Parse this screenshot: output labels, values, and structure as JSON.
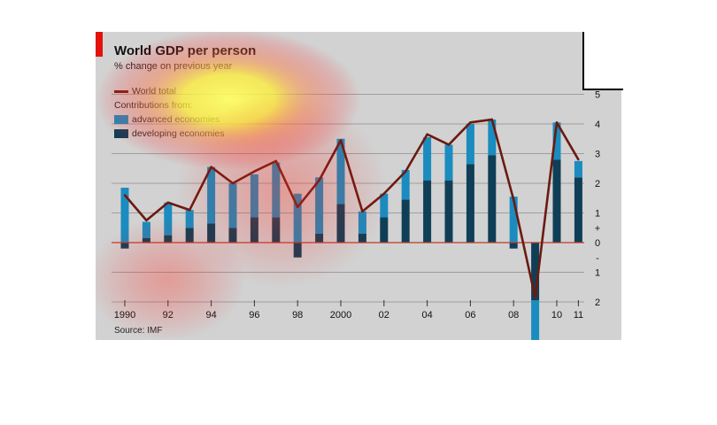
{
  "header": {
    "title": "World GDP per person",
    "subtitle": "% change on previous year"
  },
  "legend": {
    "line_label": "World total",
    "group_title": "Contributions from:",
    "advanced_label": "advanced economies",
    "developing_label": "developing economies"
  },
  "footer": {
    "source": "Source: IMF"
  },
  "colors": {
    "advanced": "#1a8cbf",
    "developing": "#0f3f57",
    "line": "#6b1a10",
    "zero_line": "#c0392b",
    "grid": "#9e9e9e",
    "panel": "#d2d2d2",
    "accent": "#e3120b"
  },
  "chart_data": {
    "type": "bar",
    "subtype": "stacked bar with line overlay",
    "title": "World GDP per person",
    "subtitle": "% change on previous year",
    "source": "Source: IMF",
    "x": [
      1990,
      1991,
      1992,
      1993,
      1994,
      1995,
      1996,
      1997,
      1998,
      1999,
      2000,
      2001,
      2002,
      2003,
      2004,
      2005,
      2006,
      2007,
      2008,
      2009,
      2010,
      2011
    ],
    "x_tick_labels": [
      "1990",
      "92",
      "94",
      "96",
      "98",
      "2000",
      "02",
      "04",
      "06",
      "08",
      "10",
      "11"
    ],
    "x_tick_years": [
      1990,
      1992,
      1994,
      1996,
      1998,
      2000,
      2002,
      2004,
      2006,
      2008,
      2010,
      2011
    ],
    "y_right_tick_labels": [
      "5",
      "4",
      "3",
      "2",
      "1",
      "+",
      "0",
      "-",
      "1",
      "2"
    ],
    "y_right_tick_values": [
      5,
      4,
      3,
      2,
      1,
      0.5,
      0,
      -0.5,
      -1,
      -2
    ],
    "ylim": [
      -2,
      5
    ],
    "grid": true,
    "axis_position": "right",
    "legend_position": "top-left",
    "series": [
      {
        "name": "developing economies",
        "kind": "bar",
        "values": [
          -0.2,
          0.15,
          0.25,
          0.5,
          0.65,
          0.5,
          0.85,
          0.85,
          -0.5,
          0.3,
          1.3,
          0.3,
          0.85,
          1.45,
          2.1,
          2.1,
          2.65,
          2.95,
          -0.2,
          -1.95,
          2.8,
          2.2
        ]
      },
      {
        "name": "advanced economies",
        "kind": "bar",
        "values": [
          1.85,
          0.55,
          1.1,
          0.6,
          1.9,
          1.5,
          1.45,
          1.85,
          1.65,
          1.9,
          2.2,
          0.75,
          0.8,
          1.0,
          1.45,
          1.2,
          1.35,
          1.2,
          1.55,
          -1.35,
          1.25,
          0.55
        ]
      },
      {
        "name": "World total",
        "kind": "line",
        "values": [
          1.6,
          0.75,
          1.35,
          1.1,
          2.55,
          2.0,
          2.4,
          2.75,
          1.2,
          2.1,
          3.45,
          1.05,
          1.65,
          2.4,
          3.65,
          3.3,
          4.05,
          4.15,
          1.45,
          -1.85,
          4.05,
          2.8
        ]
      }
    ]
  }
}
